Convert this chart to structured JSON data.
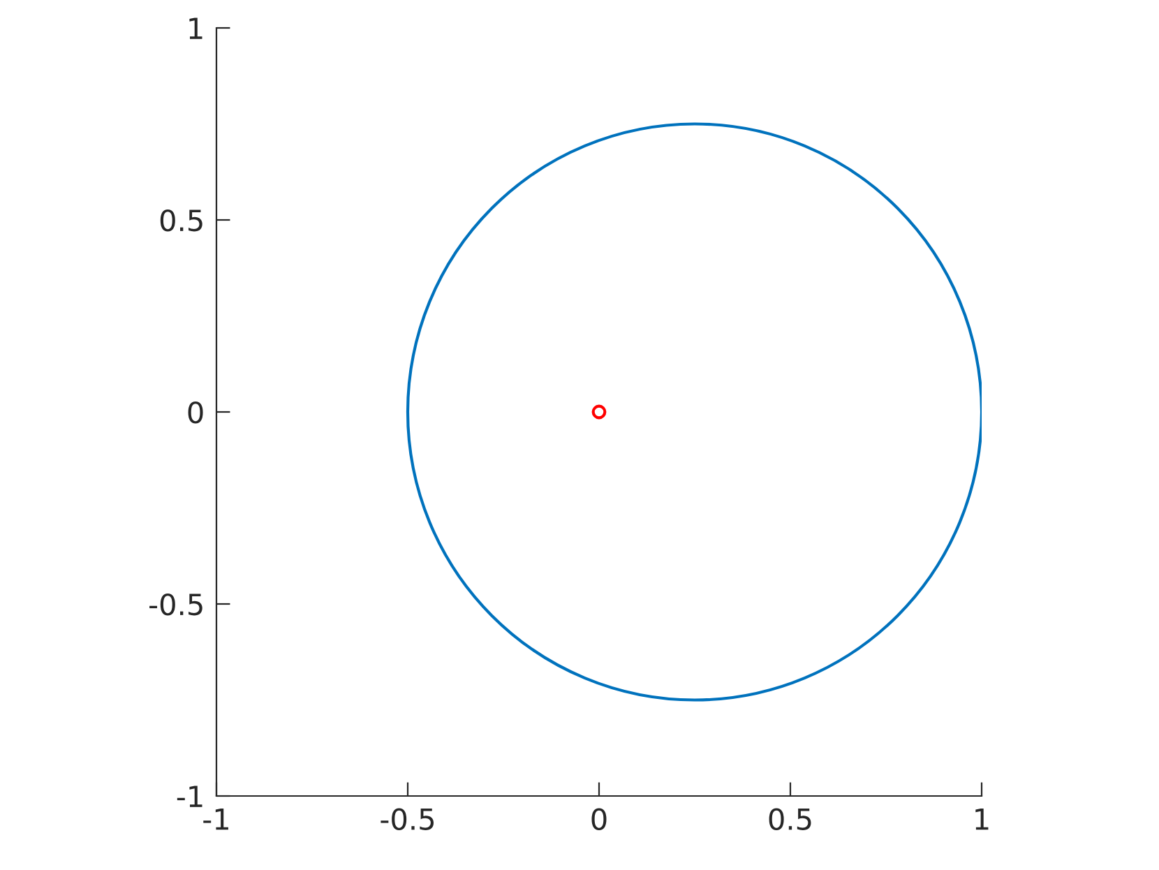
{
  "chart_data": {
    "type": "scatter",
    "xlim": [
      -1,
      1
    ],
    "ylim": [
      -1,
      1
    ],
    "xticks": [
      -1,
      -0.5,
      0,
      0.5,
      1
    ],
    "yticks": [
      -1,
      -0.5,
      0,
      0.5,
      1
    ],
    "grid": false,
    "legend": false,
    "series": [
      {
        "color": "#ff0000",
        "marker": "circle",
        "x": [
          0
        ],
        "values": [
          0
        ]
      }
    ]
  }
}
